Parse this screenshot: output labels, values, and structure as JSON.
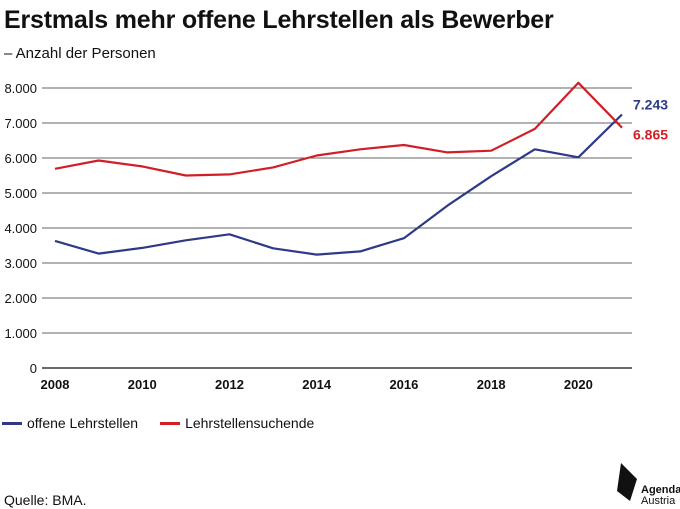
{
  "header": {
    "title": "Erstmals mehr offene Lehrstellen als Bewerber",
    "subtitle": "– Anzahl der Personen"
  },
  "footer": {
    "source": "Quelle: BMA.",
    "logo_line1": "Agenda",
    "logo_line2": "Austria"
  },
  "colors": {
    "offene": "#2e3a87",
    "suchende": "#d01f26",
    "grid": "#222222"
  },
  "chart_data": {
    "type": "line",
    "title": "Erstmals mehr offene Lehrstellen als Bewerber",
    "subtitle": "– Anzahl der Personen",
    "x": [
      2008,
      2009,
      2010,
      2011,
      2012,
      2013,
      2014,
      2015,
      2016,
      2017,
      2018,
      2019,
      2020,
      2021
    ],
    "xlim": [
      2008,
      2021.5
    ],
    "ylim": [
      0,
      8000
    ],
    "x_ticks": [
      "2008",
      "2010",
      "2012",
      "2014",
      "2016",
      "2018",
      "2020"
    ],
    "y_ticks": [
      "0",
      "1.000",
      "2.000",
      "3.000",
      "4.000",
      "5.000",
      "6.000",
      "7.000",
      "8.000"
    ],
    "grid": "horizontal",
    "legend": "bottom-left",
    "series": [
      {
        "name": "offene Lehrstellen",
        "color": "#2e3a87",
        "values": [
          3630,
          3270,
          3430,
          3650,
          3820,
          3420,
          3240,
          3330,
          3710,
          4640,
          5480,
          6250,
          6020,
          7243
        ],
        "end_label": "7.243"
      },
      {
        "name": "Lehrstellensuchende",
        "color": "#d01f26",
        "values": [
          5690,
          5930,
          5760,
          5500,
          5530,
          5730,
          6070,
          6250,
          6370,
          6160,
          6210,
          6830,
          8150,
          6865
        ],
        "end_label": "6.865"
      }
    ]
  }
}
